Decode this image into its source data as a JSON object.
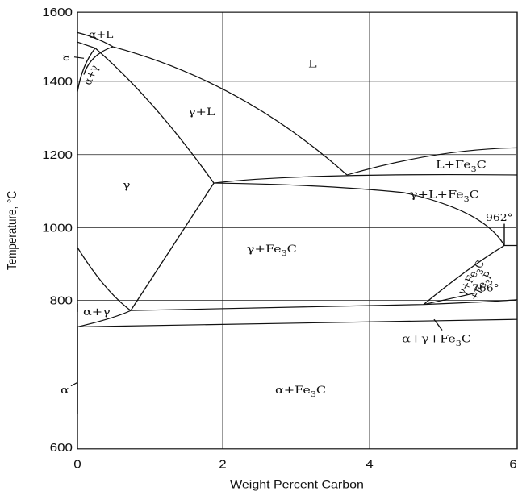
{
  "x_axis": {
    "title": "Weight Percent Carbon",
    "ticks": [
      {
        "value": 0,
        "label": "0"
      },
      {
        "value": 2,
        "label": "2"
      },
      {
        "value": 4,
        "label": "4"
      },
      {
        "value": 6,
        "label": "6"
      }
    ],
    "range": [
      0,
      6
    ]
  },
  "y_axis": {
    "title": "Temperature, °C",
    "ticks": [
      {
        "value": 600,
        "label": "600"
      },
      {
        "value": 800,
        "label": "800"
      },
      {
        "value": 1000,
        "label": "1000"
      },
      {
        "value": 1200,
        "label": "1200"
      },
      {
        "value": 1400,
        "label": "1400"
      },
      {
        "value": 1600,
        "label": "1600"
      }
    ],
    "range": [
      600,
      1600
    ]
  },
  "regions": {
    "L": "L",
    "gamma_L": "γ+L",
    "gamma": "γ",
    "L_Fe3C_main": "L+Fe",
    "L_Fe3C_sub": "3",
    "L_Fe3C_end": "C",
    "gLF_main": "γ+L+Fe",
    "gLF_sub": "3",
    "gLF_end": "C",
    "gF_main": "γ+Fe",
    "gF_sub": "3",
    "gF_end": "C",
    "alpha_gamma": "α+γ",
    "alpha": "α",
    "aF_main": "α+Fe",
    "aF_sub": "3",
    "aF_end": "C",
    "agF_main": "α+γ+Fe",
    "agF_sub": "3",
    "agF_end": "C",
    "alpha_L": "α+L",
    "alpha_top": "α",
    "alpha_gamma_small": "α+γ",
    "gFP_line1_main": "γ+Fe",
    "gFP_line1_sub": "3",
    "gFP_line1_end": "C",
    "gFP_line2_main": "+Fe",
    "gFP_line2_sub": "3",
    "gFP_line2_end": "P"
  },
  "annotations": {
    "t962": "962°",
    "t766": "766°"
  }
}
